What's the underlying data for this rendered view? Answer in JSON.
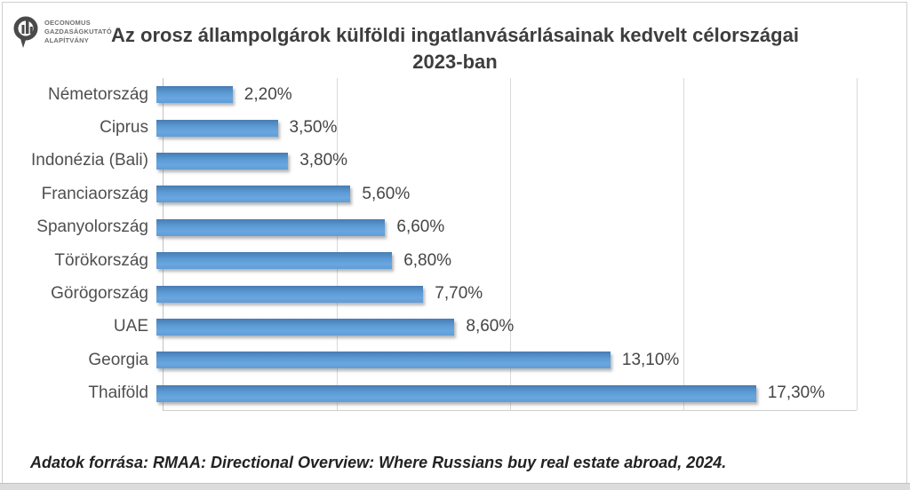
{
  "logo": {
    "icon": "oeconomus-bubble-chart-icon",
    "line1": "OECONOMUS",
    "line2": "GAZDASÁGKUTATÓ",
    "line3": "ALAPÍTVÁNY"
  },
  "title": {
    "line1": "Az orosz állampolgárok külföldi ingatlanvásárlásainak kedvelt célországai",
    "line2": "2023-ban"
  },
  "chart_data": {
    "type": "bar",
    "orientation": "horizontal",
    "title": "Az orosz állampolgárok külföldi ingatlanvásárlásainak kedvelt célországai 2023-ban",
    "categories": [
      "Németország",
      "Ciprus",
      "Indonézia (Bali)",
      "Franciaország",
      "Spanyolország",
      "Törökország",
      "Görögország",
      "UAE",
      "Georgia",
      "Thaiföld"
    ],
    "values": [
      2.2,
      3.5,
      3.8,
      5.6,
      6.6,
      6.8,
      7.7,
      8.6,
      13.1,
      17.3
    ],
    "value_labels": [
      "2,20%",
      "3,50%",
      "3,80%",
      "5,60%",
      "6,60%",
      "6,80%",
      "7,70%",
      "8,60%",
      "13,10%",
      "17,30%"
    ],
    "xlabel": "",
    "ylabel": "",
    "xlim": [
      0,
      20
    ],
    "gridline_step": 5,
    "grid": true,
    "legend": false,
    "bar_color": "#5B9BD5"
  },
  "footer": {
    "source": "Adatok forrása: RMAA: Directional Overview: Where Russians buy real estate abroad, 2024."
  },
  "colors": {
    "title_text": "#3D3D3D",
    "label_text": "#4F4F4F",
    "bar_blue": "#5B9BD5",
    "gridline": "#D9D9D9",
    "frame_border": "#CFCFCF",
    "bottom_band": "#DCDCDC"
  }
}
